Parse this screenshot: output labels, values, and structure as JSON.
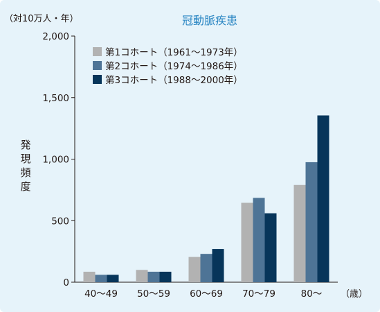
{
  "chart_data": {
    "type": "bar",
    "title": "冠動脈疾患",
    "ylabel": "発現頻度",
    "yunit": "（対10万人・年）",
    "xunit": "（歳）",
    "ylim": [
      0,
      2000
    ],
    "yticks": [
      0,
      500,
      1000,
      1500,
      2000
    ],
    "ytick_labels": [
      "0",
      "500",
      "1,000",
      "1,500",
      "2,000"
    ],
    "categories": [
      "40〜49",
      "50〜59",
      "60〜69",
      "70〜79",
      "80〜"
    ],
    "grid": false,
    "legend_position": "top-left",
    "series": [
      {
        "name": "第1コホート（1961〜1973年）",
        "color": "#b2b2b2",
        "values": [
          85,
          100,
          205,
          645,
          790
        ]
      },
      {
        "name": "第2コホート（1974〜1986年）",
        "color": "#4e7496",
        "values": [
          60,
          85,
          230,
          685,
          975
        ]
      },
      {
        "name": "第3コホート（1988〜2000年）",
        "color": "#07355a",
        "values": [
          60,
          85,
          270,
          560,
          1355
        ]
      }
    ]
  }
}
